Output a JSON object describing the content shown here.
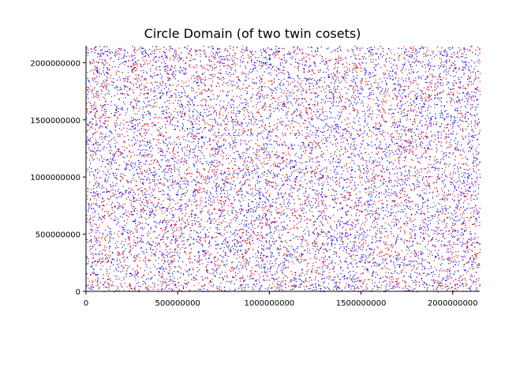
{
  "chart_data": {
    "type": "scatter",
    "title": "Circle Domain (of two twin cosets)",
    "xlabel": "",
    "ylabel": "",
    "xlim": [
      0,
      2147483647
    ],
    "ylim": [
      0,
      2147483647
    ],
    "x_ticks": [
      {
        "value": 0,
        "label": "0"
      },
      {
        "value": 500000000,
        "label": "500000000"
      },
      {
        "value": 1000000000,
        "label": "1000000000"
      },
      {
        "value": 1500000000,
        "label": "1500000000"
      },
      {
        "value": 2000000000,
        "label": "2000000000"
      }
    ],
    "y_ticks": [
      {
        "value": 0,
        "label": "0"
      },
      {
        "value": 500000000,
        "label": "500000000"
      },
      {
        "value": 1000000000,
        "label": "1000000000"
      },
      {
        "value": 1500000000,
        "label": "1500000000"
      },
      {
        "value": 2000000000,
        "label": "2000000000"
      }
    ],
    "grid": false,
    "legend": "none",
    "series": [
      {
        "color": "#0000ff",
        "marker": "pixel"
      },
      {
        "color": "#ff0000",
        "marker": "pixel"
      }
    ]
  }
}
